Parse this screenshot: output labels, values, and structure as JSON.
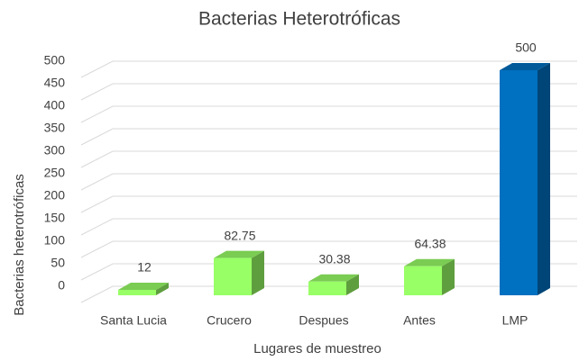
{
  "chart_data": {
    "type": "bar3d",
    "title": "Bacterias Heterotróficas",
    "x_label": "Lugares de muestreo",
    "y_label": "Bacterias heterotróficas",
    "categories": [
      "Santa Lucia",
      "Crucero",
      "Despues",
      "Antes",
      "LMP"
    ],
    "values": [
      12,
      82.75,
      30.38,
      64.38,
      500
    ],
    "colors": [
      "#99ff66",
      "#99ff66",
      "#99ff66",
      "#99ff66",
      "#0070c0"
    ],
    "ylim": [
      0,
      500
    ],
    "yticks": [
      0,
      50,
      100,
      150,
      200,
      250,
      300,
      350,
      400,
      450,
      500
    ],
    "grid": true,
    "data_labels": true
  }
}
